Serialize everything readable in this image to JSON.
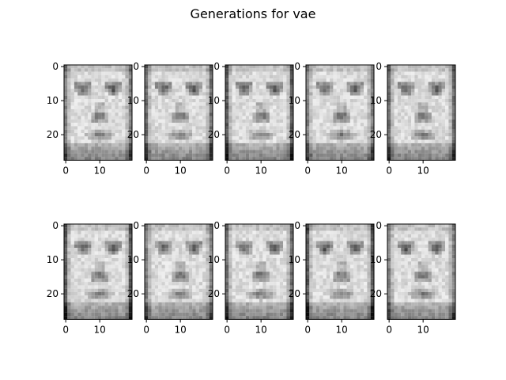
{
  "title": "Generations for vae",
  "chart_data": {
    "type": "image_grid",
    "title": "Generations for vae",
    "rows": 2,
    "cols": 5,
    "image_width": 20,
    "image_height": 28,
    "colormap": "gray",
    "panels": [
      {
        "row": 0,
        "col": 0,
        "xticks": [
          "0",
          "10"
        ],
        "yticks": [
          "0",
          "10",
          "20"
        ],
        "xlim": [
          -0.5,
          19.5
        ],
        "ylim": [
          27.5,
          -0.5
        ]
      },
      {
        "row": 0,
        "col": 1,
        "xticks": [
          "0",
          "10"
        ],
        "yticks": [
          "0",
          "10",
          "20"
        ],
        "xlim": [
          -0.5,
          19.5
        ],
        "ylim": [
          27.5,
          -0.5
        ]
      },
      {
        "row": 0,
        "col": 2,
        "xticks": [
          "0",
          "10"
        ],
        "yticks": [
          "0",
          "10",
          "20"
        ],
        "xlim": [
          -0.5,
          19.5
        ],
        "ylim": [
          27.5,
          -0.5
        ]
      },
      {
        "row": 0,
        "col": 3,
        "xticks": [
          "0",
          "10"
        ],
        "yticks": [
          "0",
          "10",
          "20"
        ],
        "xlim": [
          -0.5,
          19.5
        ],
        "ylim": [
          27.5,
          -0.5
        ]
      },
      {
        "row": 0,
        "col": 4,
        "xticks": [
          "0",
          "10"
        ],
        "yticks": [
          "0",
          "10",
          "20"
        ],
        "xlim": [
          -0.5,
          19.5
        ],
        "ylim": [
          27.5,
          -0.5
        ]
      },
      {
        "row": 1,
        "col": 0,
        "xticks": [
          "0",
          "10"
        ],
        "yticks": [
          "0",
          "10",
          "20"
        ],
        "xlim": [
          -0.5,
          19.5
        ],
        "ylim": [
          27.5,
          -0.5
        ]
      },
      {
        "row": 1,
        "col": 1,
        "xticks": [
          "0",
          "10"
        ],
        "yticks": [
          "0",
          "10",
          "20"
        ],
        "xlim": [
          -0.5,
          19.5
        ],
        "ylim": [
          27.5,
          -0.5
        ]
      },
      {
        "row": 1,
        "col": 2,
        "xticks": [
          "0",
          "10"
        ],
        "yticks": [
          "0",
          "10",
          "20"
        ],
        "xlim": [
          -0.5,
          19.5
        ],
        "ylim": [
          27.5,
          -0.5
        ]
      },
      {
        "row": 1,
        "col": 3,
        "xticks": [
          "0",
          "10"
        ],
        "yticks": [
          "0",
          "10",
          "20"
        ],
        "xlim": [
          -0.5,
          19.5
        ],
        "ylim": [
          27.5,
          -0.5
        ]
      },
      {
        "row": 1,
        "col": 4,
        "xticks": [
          "0",
          "10"
        ],
        "yticks": [
          "0",
          "10",
          "20"
        ],
        "xlim": [
          -0.5,
          19.5
        ],
        "ylim": [
          27.5,
          -0.5
        ]
      }
    ]
  }
}
